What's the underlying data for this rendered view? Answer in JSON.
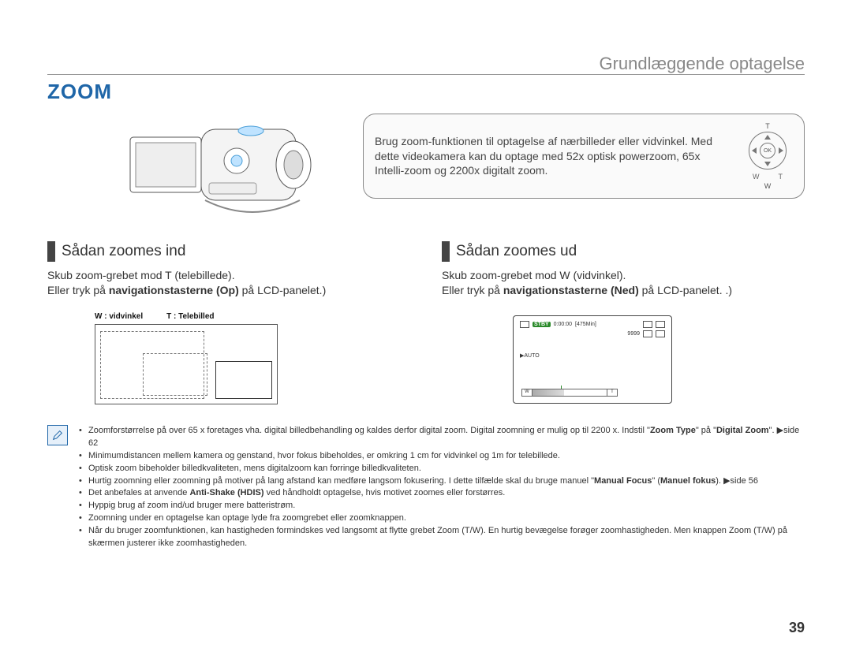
{
  "section_label": "Grundlæggende optagelse",
  "title": "ZOOM",
  "info_text": "Brug zoom-funktionen til optagelse af nærbilleder eller vidvinkel. Med dette videokamera kan du optage med 52x optisk powerzoom, 65x Intelli-zoom og 2200x digitalt zoom.",
  "dpad": {
    "t": "T",
    "ok": "OK",
    "w_label": "W",
    "t_label": "T",
    "w": "W"
  },
  "left": {
    "heading": "Sådan zoomes ind",
    "line1": "Skub zoom-grebet mod T (telebillede).",
    "line2_a": "Eller tryk på ",
    "line2_b": "navigationstasterne (Op)",
    "line2_c": " på LCD-panelet.)",
    "wt_w": "W : vidvinkel",
    "wt_t": "T : Telebilled"
  },
  "right": {
    "heading": "Sådan zoomes ud",
    "line1": "Skub zoom-grebet mod W (vidvinkel).",
    "line2_a": "Eller tryk på ",
    "line2_b": "navigationstasterne (Ned)",
    "line2_c": " på LCD-panelet. .)",
    "lcd": {
      "stby": "STBY",
      "time": "0:00:00",
      "res": "[475Min]",
      "count": "9999",
      "auto": "▶AUTO",
      "w": "W",
      "t": "T"
    }
  },
  "notes": [
    {
      "pre": "Zoomforstørrelse på over 65 x foretages vha. digital billedbehandling og kaldes derfor digital zoom. Digital zoomning er mulig op til 2200 x. Indstil \"",
      "b1": "Zoom Type",
      "mid": "\" på \"",
      "b2": "Digital Zoom",
      "post": "\". ▶side 62"
    },
    {
      "text": "Minimumdistancen mellem kamera og genstand, hvor fokus bibeholdes, er omkring 1 cm for vidvinkel og 1m for telebillede."
    },
    {
      "text": "Optisk zoom bibeholder billedkvaliteten, mens digitalzoom kan forringe billedkvaliteten."
    },
    {
      "pre": "Hurtig zoomning eller zoomning på motiver på lang afstand kan medføre langsom fokusering. I dette tilfælde skal du bruge manuel \"",
      "b1": "Manual Focus",
      "mid": "\" (",
      "b2": "Manuel fokus",
      "post": "). ▶side 56"
    },
    {
      "pre": "Det anbefales at anvende ",
      "b1": "Anti-Shake (HDIS)",
      "post": " ved håndholdt optagelse, hvis motivet zoomes eller forstørres."
    },
    {
      "text": "Hyppig brug af zoom ind/ud bruger mere batteristrøm."
    },
    {
      "text": "Zoomning under en optagelse kan optage lyde fra zoomgrebet eller zoomknappen."
    },
    {
      "text": "Når du bruger zoomfunktionen, kan hastigheden formindskes ved langsomt at flytte grebet Zoom (T/W). En hurtig bevægelse forøger zoomhastigheden. Men knappen Zoom (T/W) på skærmen justerer ikke zoomhastigheden."
    }
  ],
  "page_num": "39",
  "colors": {
    "accent": "#1f66a8",
    "text": "#333",
    "muted": "#888",
    "stby": "#2a8a2a"
  }
}
